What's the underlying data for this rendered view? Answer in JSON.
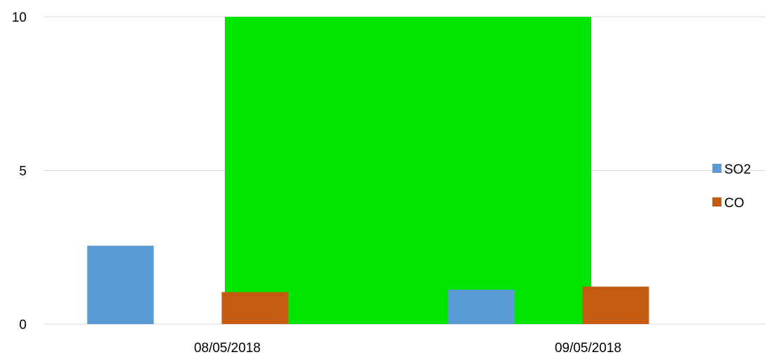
{
  "chart_data": {
    "type": "bar",
    "categories": [
      "08/05/2018",
      "09/05/2018"
    ],
    "series": [
      {
        "name": "SO2",
        "values": [
          2.55,
          1.12
        ],
        "color": "#5b9bd5"
      },
      {
        "name": "CO",
        "values": [
          1.04,
          1.22
        ],
        "color": "#c55a11"
      }
    ],
    "ylim": [
      0,
      10
    ],
    "yticks": [
      "0",
      "5",
      "10"
    ],
    "ytick_values": [
      0,
      5,
      10
    ],
    "grid": true,
    "legend_position": "right",
    "highlight_band": {
      "color": "#00e400",
      "from_value": 0,
      "to_value": 10
    }
  }
}
